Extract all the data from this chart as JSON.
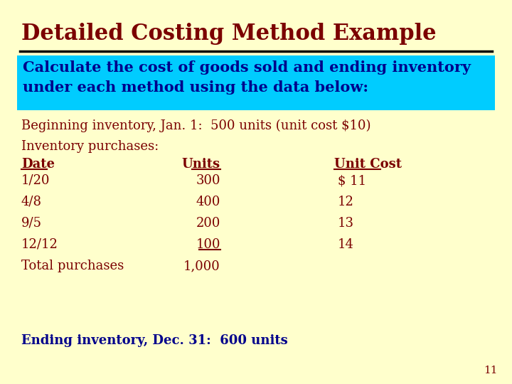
{
  "title": "Detailed Costing Method Example",
  "title_color": "#7B0000",
  "background_color": "#FFFFCC",
  "highlight_box_color": "#00CCFF",
  "highlight_text_line1": "Calculate the cost of goods sold and ending inventory",
  "highlight_text_line2": "under each method using the data below:",
  "highlight_text_color": "#00008B",
  "body_text_color": "#7B0000",
  "ending_text_color": "#00008B",
  "beginning_inventory": "Beginning inventory, Jan. 1:  500 units (unit cost $10)",
  "inventory_label": "Inventory purchases:",
  "col_date_header": "Date",
  "col_units_header": "Units",
  "col_unitcost_header": "Unit Cost",
  "rows": [
    [
      "1/20",
      "300",
      "$ 11"
    ],
    [
      "4/8",
      "400",
      "12"
    ],
    [
      "9/5",
      "200",
      "13"
    ],
    [
      "12/12",
      "100",
      "14"
    ]
  ],
  "total_label": "Total purchases",
  "total_units": "1,000",
  "ending_inventory": "Ending inventory, Dec. 31:  600 units",
  "slide_number": "11",
  "title_fontsize": 22,
  "highlight_fontsize": 15,
  "body_fontsize": 13,
  "small_fontsize": 11
}
